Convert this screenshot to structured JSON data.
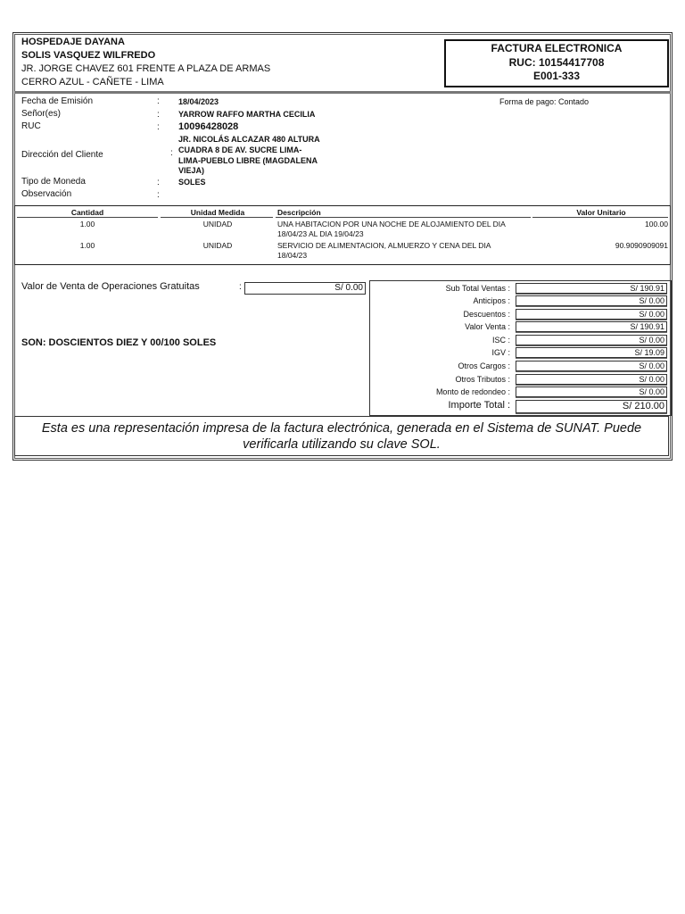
{
  "issuer": {
    "name": "HOSPEDAJE DAYANA",
    "owner": "SOLIS VASQUEZ WILFREDO",
    "address_line1": "JR. JORGE CHAVEZ 601 FRENTE A PLAZA DE ARMAS",
    "address_line2": "CERRO AZUL - CAÑETE - LIMA"
  },
  "doc_box": {
    "type": "FACTURA ELECTRONICA",
    "ruc": "RUC: 10154417708",
    "number": "E001-333"
  },
  "info": {
    "fecha_label": "Fecha de Emisión",
    "fecha_value": "18/04/2023",
    "senor_label": "Señor(es)",
    "senor_value": "YARROW RAFFO MARTHA CECILIA",
    "ruc_label": "RUC",
    "ruc_value": "10096428028",
    "direccion_label": "Dirección del Cliente",
    "direccion_lines": [
      "JR. NICOLÁS ALCAZAR 480 ALTURA",
      "CUADRA 8 DE AV. SUCRE LIMA-",
      "LIMA-PUEBLO LIBRE (MAGDALENA",
      "VIEJA)"
    ],
    "moneda_label": "Tipo de Moneda",
    "moneda_value": "SOLES",
    "observacion_label": "Observación",
    "forma_pago": "Forma de pago: Contado",
    "colon": ":"
  },
  "items": {
    "headers": [
      "Cantidad",
      "Unidad Medida",
      "Descripción",
      "Valor Unitario"
    ],
    "rows": [
      {
        "cantidad": "1.00",
        "unidad": "UNIDAD",
        "desc1": "UNA HABITACION POR UNA NOCHE DE ALOJAMIENTO DEL DIA",
        "desc2": "18/04/23 AL DIA 19/04/23",
        "valor": "100.00"
      },
      {
        "cantidad": "1.00",
        "unidad": "UNIDAD",
        "desc1": "SERVICIO DE ALIMENTACION, ALMUERZO Y CENA DEL DIA",
        "desc2": "18/04/23",
        "valor": "90.9090909091"
      }
    ]
  },
  "gratuitas": {
    "label": "Valor de Venta de Operaciones Gratuitas",
    "value": "S/ 0.00"
  },
  "son": "SON: DOSCIENTOS DIEZ Y 00/100 SOLES",
  "totals": [
    {
      "label": "Sub Total Ventas :",
      "value": "S/ 190.91"
    },
    {
      "label": "Anticipos :",
      "value": "S/ 0.00"
    },
    {
      "label": "Descuentos :",
      "value": "S/ 0.00"
    },
    {
      "label": "Valor Venta :",
      "value": "S/ 190.91"
    },
    {
      "label": "ISC :",
      "value": "S/ 0.00"
    },
    {
      "label": "IGV :",
      "value": "S/ 19.09"
    },
    {
      "label": "Otros Cargos :",
      "value": "S/ 0.00"
    },
    {
      "label": "Otros Tributos :",
      "value": "S/ 0.00"
    },
    {
      "label": "Monto de redondeo :",
      "value": "S/ 0.00"
    },
    {
      "label": "Importe Total :",
      "value": "S/ 210.00"
    }
  ],
  "footer": {
    "line1": "Esta es una representación impresa de la factura electrónica, generada en el Sistema de SUNAT. Puede",
    "line2": "verificarla utilizando su clave SOL."
  }
}
